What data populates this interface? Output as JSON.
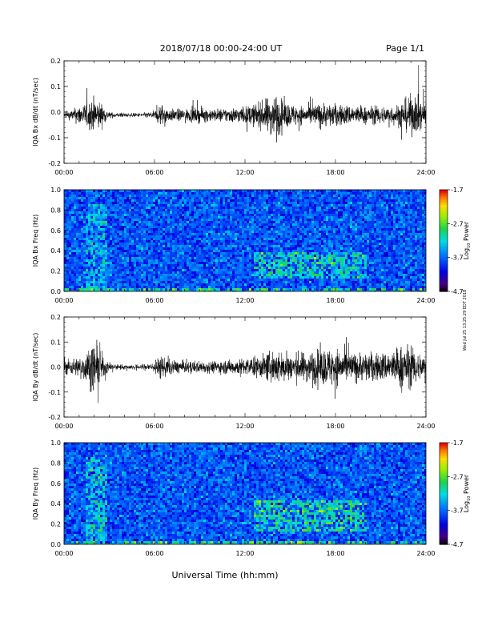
{
  "header": {
    "date_range": "2018/07/18  00:00-24:00 UT",
    "page": "Page 1/1"
  },
  "footer": {
    "xlabel": "Universal Time (hh:mm)",
    "side_note": "Wed Jul 25 13:25:29 EDT 2018"
  },
  "chart_data": [
    {
      "type": "line",
      "ylabel": "IQA Bx dB/dt (nT/sec)",
      "ylim": [
        -0.2,
        0.2
      ],
      "yticks": [
        "0.2",
        "0.1",
        "0.0",
        "-0.1",
        "-0.2"
      ],
      "ytick_values": [
        0.2,
        0.1,
        0.0,
        -0.1,
        -0.2
      ],
      "xlim": [
        0,
        24
      ],
      "xticks": [
        "00:00",
        "06:00",
        "12:00",
        "18:00",
        "24:00"
      ],
      "xtick_values": [
        0,
        6,
        12,
        18,
        24
      ],
      "envelope": {
        "x_hours": [
          0,
          0.5,
          1,
          1.5,
          2,
          2.3,
          2.7,
          3,
          4,
          5,
          6,
          6.4,
          7,
          8,
          9,
          10,
          11,
          12,
          13,
          13.5,
          14,
          14.5,
          15,
          16,
          17,
          18,
          19,
          20,
          21,
          22,
          22.5,
          23,
          23.5,
          24
        ],
        "amplitude": [
          0.012,
          0.02,
          0.04,
          0.05,
          0.07,
          0.06,
          0.03,
          0.012,
          0.008,
          0.008,
          0.015,
          0.05,
          0.025,
          0.025,
          0.03,
          0.025,
          0.03,
          0.035,
          0.05,
          0.07,
          0.09,
          0.06,
          0.045,
          0.035,
          0.05,
          0.045,
          0.04,
          0.035,
          0.035,
          0.04,
          0.06,
          0.08,
          0.07,
          0.05
        ]
      }
    },
    {
      "type": "heatmap",
      "ylabel": "IQA Bx Freq (Hz)",
      "ylim": [
        0.0,
        1.0
      ],
      "yticks": [
        "1.0",
        "0.8",
        "0.6",
        "0.4",
        "0.2",
        "0.0"
      ],
      "ytick_values": [
        1.0,
        0.8,
        0.6,
        0.4,
        0.2,
        0.0
      ],
      "xlim": [
        0,
        24
      ],
      "xticks": [
        "00:00",
        "06:00",
        "12:00",
        "18:00",
        "24:00"
      ],
      "xtick_values": [
        0,
        6,
        12,
        18,
        24
      ],
      "colorbar": {
        "label": "Log₁₀ Power",
        "label_main": "Log",
        "label_sub": "10",
        "label_tail": " Power",
        "ticks": [
          "-1.7",
          "-2.7",
          "-3.7",
          "-4.7"
        ],
        "tick_values": [
          -1.7,
          -2.7,
          -3.7,
          -4.7
        ],
        "range": [
          -4.7,
          -1.7
        ]
      },
      "features": [
        {
          "t_start": 12.5,
          "t_end": 20,
          "f_low": 0.15,
          "f_high": 0.4,
          "level": -3.1
        },
        {
          "t_start": 1.5,
          "t_end": 2.8,
          "f_low": 0.0,
          "f_high": 0.85,
          "level": -3.3
        },
        {
          "t_start": 0,
          "t_end": 24,
          "f_low": 0.0,
          "f_high": 0.05,
          "level": -2.9
        }
      ]
    },
    {
      "type": "line",
      "ylabel": "IQA By dB/dt (nT/sec)",
      "ylim": [
        -0.2,
        0.2
      ],
      "yticks": [
        "0.2",
        "0.1",
        "0.0",
        "-0.1",
        "-0.2"
      ],
      "ytick_values": [
        0.2,
        0.1,
        0.0,
        -0.1,
        -0.2
      ],
      "xlim": [
        0,
        24
      ],
      "xticks": [
        "00:00",
        "06:00",
        "12:00",
        "18:00",
        "24:00"
      ],
      "xtick_values": [
        0,
        6,
        12,
        18,
        24
      ],
      "envelope": {
        "x_hours": [
          0,
          0.5,
          1,
          1.5,
          2,
          2.3,
          2.7,
          3,
          4,
          5,
          6,
          6.4,
          7,
          8,
          9,
          10,
          11,
          12,
          13,
          13.5,
          14,
          14.5,
          15,
          16,
          17,
          18,
          19,
          20,
          21,
          22,
          22.5,
          23,
          23.5,
          24
        ],
        "amplitude": [
          0.03,
          0.035,
          0.04,
          0.07,
          0.1,
          0.08,
          0.04,
          0.015,
          0.01,
          0.01,
          0.02,
          0.05,
          0.03,
          0.025,
          0.025,
          0.025,
          0.03,
          0.035,
          0.045,
          0.06,
          0.07,
          0.06,
          0.06,
          0.06,
          0.075,
          0.08,
          0.06,
          0.06,
          0.06,
          0.07,
          0.1,
          0.08,
          0.06,
          0.05
        ]
      }
    },
    {
      "type": "heatmap",
      "ylabel": "IQA By Freq (Hz)",
      "ylim": [
        0.0,
        1.0
      ],
      "yticks": [
        "1.0",
        "0.8",
        "0.6",
        "0.4",
        "0.2",
        "0.0"
      ],
      "ytick_values": [
        1.0,
        0.8,
        0.6,
        0.4,
        0.2,
        0.0
      ],
      "xlim": [
        0,
        24
      ],
      "xticks": [
        "00:00",
        "06:00",
        "12:00",
        "18:00",
        "24:00"
      ],
      "xtick_values": [
        0,
        6,
        12,
        18,
        24
      ],
      "colorbar": {
        "label": "Log₁₀ Power",
        "label_main": "Log",
        "label_sub": "10",
        "label_tail": " Power",
        "ticks": [
          "-1.7",
          "-2.7",
          "-3.7",
          "-4.7"
        ],
        "tick_values": [
          -1.7,
          -2.7,
          -3.7,
          -4.7
        ],
        "range": [
          -4.7,
          -1.7
        ]
      },
      "features": [
        {
          "t_start": 12.5,
          "t_end": 20,
          "f_low": 0.15,
          "f_high": 0.45,
          "level": -3.0
        },
        {
          "t_start": 1.5,
          "t_end": 2.8,
          "f_low": 0.0,
          "f_high": 0.85,
          "level": -3.2
        },
        {
          "t_start": 0,
          "t_end": 24,
          "f_low": 0.0,
          "f_high": 0.05,
          "level": -2.8
        }
      ]
    }
  ]
}
